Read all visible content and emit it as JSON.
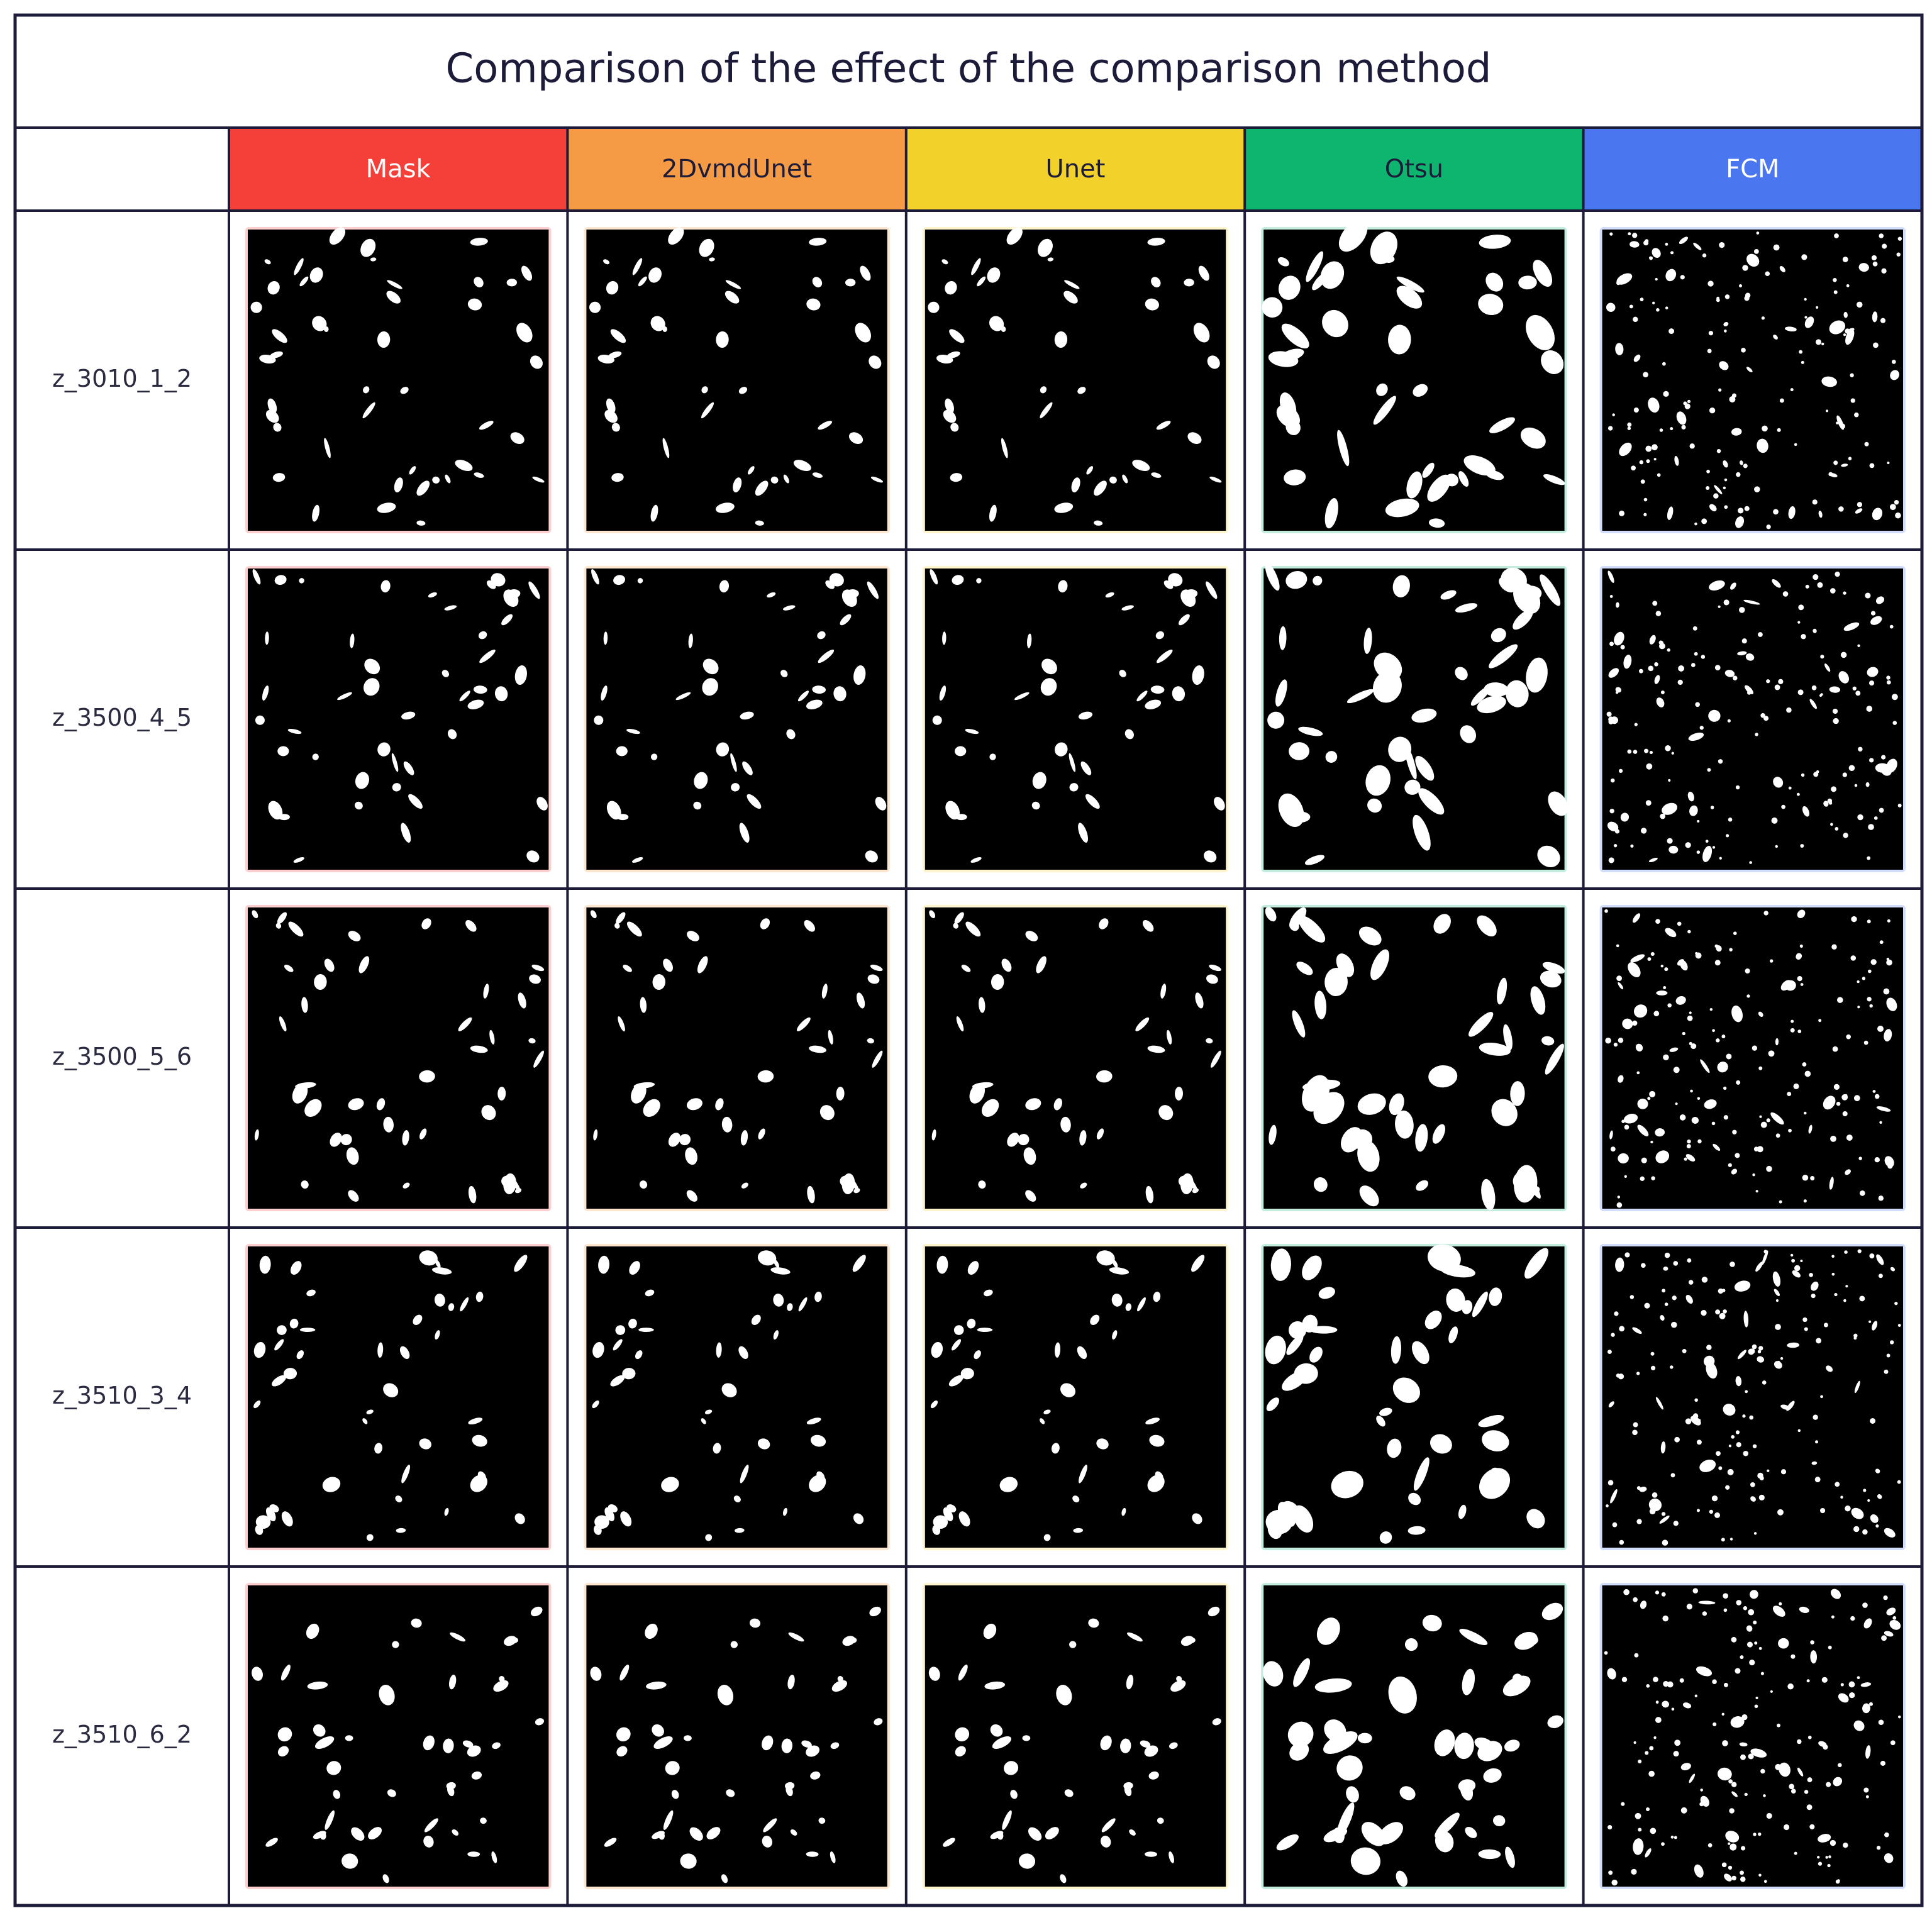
{
  "title": "Comparison of the effect of the comparison method",
  "columns": [
    {
      "label": "Mask",
      "color": "#f5403a",
      "text_color": "#ffffff"
    },
    {
      "label": "2DvmdUnet",
      "color": "#f59a45",
      "text_color": "#1c1c3a"
    },
    {
      "label": "Unet",
      "color": "#f2d22a",
      "text_color": "#1c1c3a"
    },
    {
      "label": "Otsu",
      "color": "#0db56f",
      "text_color": "#1c1c3a"
    },
    {
      "label": "FCM",
      "color": "#4a76f0",
      "text_color": "#ffffff"
    }
  ],
  "rows": [
    "z_3010_1_2",
    "z_3500_4_5",
    "z_3500_5_6",
    "z_3510_3_4",
    "z_3510_6_2"
  ]
}
